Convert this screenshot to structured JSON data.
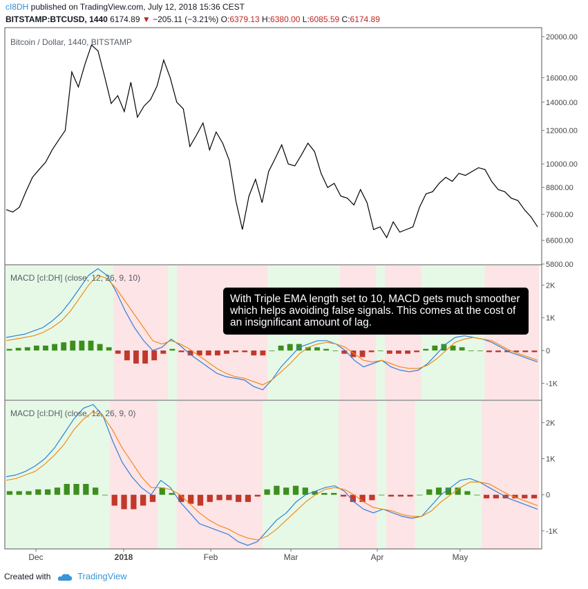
{
  "header": {
    "user": "cI8DH",
    "published_text": " published on TradingView.com, July 12, 2018 15:36 CEST",
    "symbol": "BITSTAMP:BTCUSD, 1440",
    "last": "6174.89",
    "change": "−205.11 (−3.21%)",
    "o_label": "O:",
    "o_value": "6379.13",
    "h_label": "H:",
    "h_value": "6380.00",
    "l_label": "L:",
    "l_value": "6085.59",
    "c_label": "C:",
    "c_value": "6174.89"
  },
  "annotation": "With Triple EMA length set to 10, MACD gets much smoother which helps avoiding false signals. This comes at the cost of an insignificant amount of lag.",
  "footer": {
    "created_with": "Created with",
    "brand": "TradingView"
  },
  "colors": {
    "price": "#000000",
    "macd": "#2f7ed8",
    "signal": "#f28a1c",
    "hist_pos": "#3d8f1d",
    "hist_neg": "#c0392b",
    "bg_pos": "#e6f9e6",
    "bg_neg": "#fde4e6"
  },
  "chart_data": [
    {
      "type": "line",
      "title": "Bitcoin / Dollar, 1440, BITSTAMP",
      "scale": "log",
      "ylim": [
        5800,
        21000
      ],
      "yticks": [
        "20000.00",
        "16000.00",
        "14000.00",
        "12000.00",
        "10000.00",
        "8800.00",
        "7600.00",
        "6600.00",
        "5800.00"
      ],
      "x_labels": [
        "Dec",
        "2018",
        "Feb",
        "Mar",
        "Apr",
        "May"
      ],
      "series": [
        {
          "name": "",
          "values": [
            7800,
            7700,
            7900,
            8600,
            9300,
            9700,
            10100,
            10800,
            11400,
            12000,
            16500,
            15200,
            17200,
            19100,
            18500,
            16100,
            13900,
            14500,
            13300,
            15600,
            12900,
            13700,
            14200,
            15300,
            17600,
            16000,
            14000,
            13500,
            11000,
            11700,
            12500,
            10800,
            11900,
            11200,
            10200,
            8200,
            7000,
            8400,
            9200,
            8100,
            9600,
            10300,
            11100,
            10000,
            9900,
            10500,
            11200,
            10700,
            9500,
            8800,
            9000,
            8400,
            8300,
            8000,
            8700,
            8100,
            7000,
            7100,
            6700,
            7300,
            6900,
            7000,
            7100,
            7900,
            8500,
            8600,
            9000,
            9300,
            9100,
            9500,
            9400,
            9600,
            9800,
            9700,
            9100,
            8700,
            8600,
            8300,
            8200,
            7800,
            7500,
            7100
          ]
        }
      ]
    },
    {
      "type": "line",
      "title": "MACD [cI:DH] (close, 12, 26, 9, 10)",
      "ylim": [
        -1500,
        2600
      ],
      "yticks": [
        "2K",
        "1K",
        "0",
        "-1K"
      ],
      "series": [
        {
          "name": "",
          "values": [
            400,
            450,
            500,
            600,
            700,
            900,
            1150,
            1500,
            1900,
            2300,
            2500,
            2300,
            1800,
            1200,
            700,
            300,
            0,
            100,
            350,
            150,
            -100,
            -300,
            -500,
            -700,
            -800,
            -850,
            -900,
            -1100,
            -1200,
            -900,
            -500,
            -200,
            100,
            200,
            300,
            300,
            200,
            0,
            -300,
            -500,
            -400,
            -300,
            -500,
            -600,
            -650,
            -600,
            -400,
            -100,
            200,
            400,
            450,
            400,
            350,
            250,
            100,
            -50,
            -150,
            -250,
            -350
          ]
        },
        {
          "name": "",
          "values": [
            300,
            350,
            400,
            450,
            550,
            700,
            900,
            1200,
            1600,
            2000,
            2300,
            2200,
            1900,
            1500,
            1100,
            700,
            300,
            200,
            300,
            200,
            50,
            -150,
            -350,
            -550,
            -700,
            -800,
            -850,
            -950,
            -1050,
            -900,
            -650,
            -400,
            -100,
            100,
            200,
            250,
            200,
            100,
            -100,
            -300,
            -350,
            -300,
            -400,
            -500,
            -550,
            -550,
            -450,
            -250,
            0,
            250,
            350,
            400,
            350,
            300,
            150,
            0,
            -100,
            -200,
            -300
          ]
        }
      ],
      "histogram": [
        50,
        80,
        100,
        150,
        150,
        200,
        250,
        300,
        300,
        300,
        200,
        100,
        -100,
        -300,
        -400,
        -400,
        -300,
        -100,
        50,
        -50,
        -150,
        -150,
        -150,
        -150,
        -100,
        -50,
        -50,
        -150,
        -150,
        0,
        150,
        200,
        200,
        100,
        100,
        50,
        0,
        -100,
        -200,
        -200,
        -50,
        0,
        -100,
        -100,
        -100,
        -50,
        50,
        150,
        200,
        150,
        100,
        0,
        0,
        -50,
        -50,
        -50,
        -50,
        -50,
        -50
      ]
    },
    {
      "type": "line",
      "title": "MACD [cI:DH] (close, 12, 26, 9, 0)",
      "ylim": [
        -1500,
        2600
      ],
      "yticks": [
        "2K",
        "1K",
        "0",
        "-1K"
      ],
      "series": [
        {
          "name": "",
          "values": [
            500,
            550,
            650,
            800,
            1000,
            1300,
            1700,
            2100,
            2400,
            2500,
            2200,
            1500,
            900,
            500,
            200,
            0,
            400,
            200,
            -200,
            -500,
            -800,
            -900,
            -1000,
            -1100,
            -1300,
            -1400,
            -1300,
            -1000,
            -700,
            -500,
            -200,
            0,
            100,
            200,
            250,
            100,
            -200,
            -400,
            -500,
            -400,
            -500,
            -600,
            -650,
            -600,
            -300,
            0,
            200,
            400,
            450,
            350,
            200,
            50,
            -100,
            -200,
            -300,
            -400
          ]
        },
        {
          "name": "",
          "values": [
            400,
            450,
            550,
            650,
            850,
            1100,
            1400,
            1800,
            2100,
            2300,
            2200,
            1800,
            1300,
            900,
            500,
            200,
            200,
            150,
            0,
            -250,
            -500,
            -700,
            -850,
            -950,
            -1100,
            -1200,
            -1250,
            -1150,
            -950,
            -700,
            -450,
            -200,
            0,
            150,
            200,
            150,
            0,
            -200,
            -350,
            -400,
            -450,
            -550,
            -600,
            -600,
            -450,
            -200,
            0,
            200,
            350,
            350,
            300,
            150,
            0,
            -100,
            -200,
            -300
          ]
        }
      ],
      "histogram": [
        100,
        100,
        100,
        150,
        150,
        200,
        300,
        300,
        300,
        200,
        0,
        -300,
        -400,
        -400,
        -300,
        -200,
        200,
        50,
        -200,
        -250,
        -300,
        -200,
        -150,
        -150,
        -200,
        -200,
        -50,
        150,
        250,
        200,
        250,
        200,
        100,
        50,
        50,
        -50,
        -200,
        -200,
        -150,
        0,
        -50,
        -50,
        -50,
        0,
        150,
        200,
        200,
        200,
        100,
        0,
        -100,
        -100,
        -100,
        -100,
        -100,
        -100
      ]
    }
  ]
}
